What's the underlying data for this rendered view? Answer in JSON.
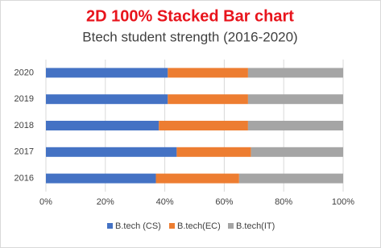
{
  "chart_data": {
    "type": "stacked_barh",
    "title": "2D 100% Stacked Bar chart",
    "subtitle": "Btech student strength (2016-2020)",
    "categories": [
      "2016",
      "2017",
      "2018",
      "2019",
      "2020"
    ],
    "series": [
      {
        "name": "B.tech (CS)",
        "color": "#4472c4",
        "values": [
          37,
          44,
          38,
          41,
          41
        ]
      },
      {
        "name": "B.tech(EC)",
        "color": "#ed7d31",
        "values": [
          28,
          25,
          30,
          27,
          27
        ]
      },
      {
        "name": "B.tech(IT)",
        "color": "#a5a5a5",
        "values": [
          35,
          31,
          32,
          32,
          32
        ]
      }
    ],
    "xlim": [
      0,
      100
    ],
    "xticks": [
      {
        "value": 0,
        "label": "0%"
      },
      {
        "value": 20,
        "label": "20%"
      },
      {
        "value": 40,
        "label": "40%"
      },
      {
        "value": 60,
        "label": "60%"
      },
      {
        "value": 80,
        "label": "80%"
      },
      {
        "value": 100,
        "label": "100%"
      }
    ],
    "grid": true,
    "legend": "bottom"
  }
}
